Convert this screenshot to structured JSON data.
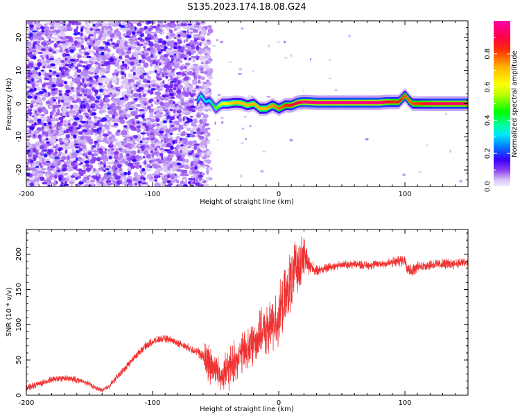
{
  "title": "S135.2023.174.18.08.G24",
  "chart_data": [
    {
      "type": "heatmap",
      "title": "S135.2023.174.18.08.G24",
      "xlabel": "Height of straight line (km)",
      "ylabel": "Frequency (Hz)",
      "xlim": [
        -200,
        150
      ],
      "ylim": [
        -25,
        25
      ],
      "x_ticks": [
        -200,
        -100,
        0,
        100
      ],
      "x_tick_labels": [
        "-200",
        "-100",
        "0",
        "100"
      ],
      "y_ticks": [
        -20,
        -10,
        0,
        10,
        20
      ],
      "y_tick_labels": [
        "-20",
        "-10",
        "0",
        "10",
        "20"
      ],
      "noise_region": {
        "x_range": [
          -200,
          -60
        ],
        "amplitude_range": [
          0.0,
          0.3
        ]
      },
      "sparse_region": {
        "x_range": [
          -60,
          150
        ],
        "amplitude_range": [
          0.0,
          0.1
        ]
      },
      "ridge": {
        "x": [
          -65,
          -62,
          -58,
          -55,
          -52,
          -50,
          -47,
          -45,
          -40,
          -35,
          -30,
          -25,
          -20,
          -15,
          -10,
          -5,
          0,
          5,
          10,
          15,
          20,
          30,
          40,
          50,
          60,
          70,
          80,
          85,
          90,
          95,
          100,
          103,
          106,
          110,
          115,
          120,
          130,
          140,
          150
        ],
        "frequency": [
          0.5,
          2.5,
          0.5,
          1.0,
          -0.5,
          -1.5,
          -0.5,
          0.0,
          0.0,
          0.3,
          0.2,
          -0.5,
          0.0,
          -1.5,
          -1.5,
          -0.5,
          -1.5,
          -0.5,
          -0.5,
          0.3,
          0.5,
          0.3,
          0.3,
          0.3,
          0.3,
          0.3,
          0.3,
          0.5,
          0.5,
          0.5,
          2.5,
          1.0,
          0.0,
          0.0,
          0.0,
          0.0,
          0.0,
          0.0,
          0.0
        ],
        "amplitude": [
          0.25,
          0.35,
          0.3,
          0.3,
          0.45,
          0.5,
          0.55,
          0.6,
          0.65,
          0.7,
          0.7,
          0.7,
          0.72,
          0.72,
          0.72,
          0.75,
          0.78,
          0.82,
          0.88,
          0.92,
          0.95,
          0.96,
          0.96,
          0.96,
          0.96,
          0.96,
          0.96,
          0.9,
          0.85,
          0.85,
          0.8,
          0.78,
          0.8,
          0.82,
          0.88,
          0.9,
          0.92,
          0.92,
          0.92
        ]
      },
      "colorbar": {
        "label": "Normalized spectral amplitude",
        "range": [
          0.0,
          1.0
        ],
        "ticks": [
          0.0,
          0.2,
          0.4,
          0.6,
          0.8
        ],
        "tick_labels": [
          "0.0",
          "0.2",
          "0.4",
          "0.6",
          "0.8"
        ]
      }
    },
    {
      "type": "line",
      "xlabel": "Height of straight line (km)",
      "ylabel": "SNR (10 * v/v)",
      "xlim": [
        -200,
        150
      ],
      "ylim": [
        0,
        235
      ],
      "x_ticks": [
        -200,
        -100,
        0,
        100
      ],
      "x_tick_labels": [
        "-200",
        "-100",
        "0",
        "100"
      ],
      "y_ticks": [
        0,
        50,
        100,
        150,
        200
      ],
      "y_tick_labels": [
        "0",
        "50",
        "100",
        "150",
        "200"
      ],
      "color": "#f03232",
      "series": [
        {
          "name": "SNR",
          "x": [
            -200,
            -190,
            -180,
            -170,
            -160,
            -150,
            -145,
            -140,
            -135,
            -130,
            -125,
            -120,
            -115,
            -110,
            -105,
            -100,
            -95,
            -90,
            -85,
            -80,
            -75,
            -70,
            -65,
            -60,
            -58,
            -55,
            -50,
            -45,
            -40,
            -35,
            -30,
            -25,
            -20,
            -15,
            -10,
            -5,
            0,
            5,
            10,
            15,
            20,
            25,
            30,
            40,
            50,
            60,
            70,
            80,
            90,
            100,
            102,
            105,
            110,
            120,
            130,
            140,
            150
          ],
          "center": [
            10,
            16,
            22,
            24,
            22,
            16,
            10,
            7,
            12,
            22,
            32,
            42,
            52,
            62,
            70,
            76,
            79,
            80,
            78,
            74,
            70,
            66,
            62,
            55,
            50,
            45,
            38,
            28,
            36,
            48,
            58,
            65,
            75,
            85,
            90,
            100,
            112,
            135,
            162,
            185,
            198,
            183,
            176,
            182,
            185,
            186,
            184,
            186,
            188,
            192,
            182,
            176,
            182,
            185,
            186,
            187,
            188
          ],
          "spread": [
            6,
            6,
            6,
            6,
            6,
            5,
            4,
            4,
            5,
            6,
            6,
            7,
            7,
            7,
            7,
            7,
            7,
            7,
            7,
            7,
            7,
            7,
            9,
            12,
            40,
            45,
            30,
            30,
            40,
            40,
            40,
            42,
            42,
            45,
            45,
            50,
            55,
            60,
            60,
            55,
            40,
            15,
            10,
            8,
            8,
            8,
            8,
            8,
            10,
            12,
            14,
            12,
            10,
            10,
            10,
            10,
            10
          ]
        }
      ]
    }
  ]
}
